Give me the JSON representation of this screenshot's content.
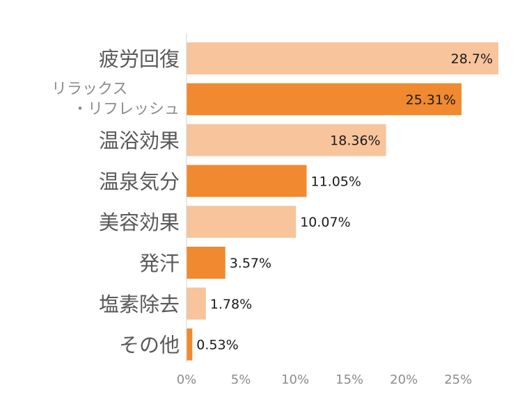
{
  "chart_data": {
    "type": "bar",
    "orientation": "horizontal",
    "title": "",
    "xlabel": "",
    "ylabel": "",
    "categories": [
      [
        "疲労回復"
      ],
      [
        "リラックス",
        "・リフレッシュ"
      ],
      [
        "温浴効果"
      ],
      [
        "温泉気分"
      ],
      [
        "美容効果"
      ],
      [
        "発汗"
      ],
      [
        "塩素除去"
      ],
      [
        "その他"
      ]
    ],
    "values": [
      28.7,
      25.31,
      18.36,
      11.05,
      10.07,
      3.57,
      1.78,
      0.53
    ],
    "value_labels": [
      "28.7%",
      "25.31%",
      "18.36%",
      "11.05%",
      "10.07%",
      "3.57%",
      "1.78%",
      "0.53%"
    ],
    "xlim": [
      0,
      28.7
    ],
    "x_ticks": [
      0,
      5,
      10,
      15,
      20,
      25
    ],
    "x_tick_labels": [
      "0%",
      "5%",
      "10%",
      "15%",
      "20%",
      "25%"
    ],
    "colors": [
      "#f8c49c",
      "#f0892f"
    ],
    "grid": false,
    "legend": "none"
  }
}
